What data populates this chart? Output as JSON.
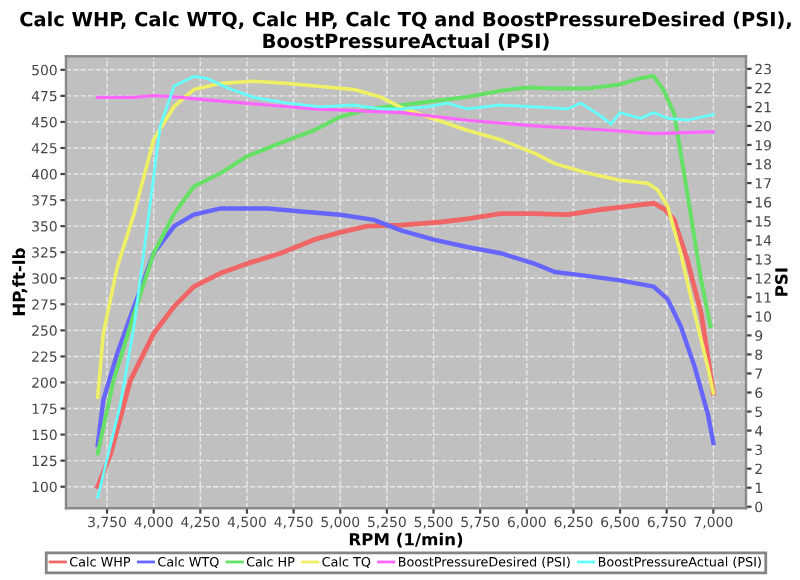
{
  "chart_data": {
    "type": "line",
    "title": "Calc WHP, Calc WTQ, Calc HP, Calc TQ and BoostPressureDesired (PSI),\nBoostPressureActual (PSI)",
    "xlabel": "RPM (1/min)",
    "ylabel": "HP,ft-lb",
    "y2label": "PSI",
    "xlim": [
      3530,
      7175
    ],
    "ylim": [
      79.5,
      513
    ],
    "y2lim": [
      -0.07,
      23.66
    ],
    "xticks": [
      {
        "value": 3750,
        "label": "3,750"
      },
      {
        "value": 4000,
        "label": "4,000"
      },
      {
        "value": 4250,
        "label": "4,250"
      },
      {
        "value": 4500,
        "label": "4,500"
      },
      {
        "value": 4750,
        "label": "4,750"
      },
      {
        "value": 5000,
        "label": "5,000"
      },
      {
        "value": 5250,
        "label": "5,250"
      },
      {
        "value": 5500,
        "label": "5,500"
      },
      {
        "value": 5750,
        "label": "5,750"
      },
      {
        "value": 6000,
        "label": "6,000"
      },
      {
        "value": 6250,
        "label": "6,250"
      },
      {
        "value": 6500,
        "label": "6,500"
      },
      {
        "value": 6750,
        "label": "6,750"
      },
      {
        "value": 7000,
        "label": "7,000"
      }
    ],
    "yticks": [
      100,
      125,
      150,
      175,
      200,
      225,
      250,
      275,
      300,
      325,
      350,
      375,
      400,
      425,
      450,
      475,
      500
    ],
    "y2ticks": [
      0,
      1,
      2,
      3,
      4,
      5,
      6,
      7,
      8,
      9,
      10,
      11,
      12,
      13,
      14,
      15,
      16,
      17,
      18,
      19,
      20,
      21,
      22,
      23
    ],
    "grid": true,
    "legend": "bottom",
    "line_style": "solid",
    "marker": "none",
    "series": [
      {
        "name": "Calc WHP",
        "color": "#f06666",
        "x": [
          3700,
          3770,
          3875,
          4000,
          4110,
          4215,
          4360,
          4500,
          4680,
          4860,
          5000,
          5145,
          5325,
          5540,
          5680,
          5860,
          6040,
          6220,
          6400,
          6540,
          6680,
          6740,
          6790,
          6860,
          6935,
          7000
        ],
        "values": [
          100,
          132,
          202,
          247,
          273,
          292,
          305,
          314,
          324,
          337,
          344,
          350,
          351,
          354,
          357,
          362,
          362,
          361,
          366,
          369,
          372,
          366,
          356,
          318,
          266,
          190
        ]
      },
      {
        "name": "Calc WTQ",
        "color": "#6666ff",
        "x": [
          3700,
          3730,
          3805,
          3895,
          4000,
          4110,
          4215,
          4360,
          4610,
          4790,
          5000,
          5180,
          5325,
          5500,
          5680,
          5860,
          6040,
          6150,
          6290,
          6500,
          6680,
          6755,
          6825,
          6900,
          6970,
          7000
        ],
        "values": [
          140,
          183,
          228,
          273,
          324,
          350,
          361,
          367,
          367,
          364,
          361,
          356,
          346,
          337,
          330,
          324,
          314,
          306,
          303,
          298,
          292,
          280,
          254,
          215,
          170,
          142
        ]
      },
      {
        "name": "Calc HP",
        "color": "#66e066",
        "x": [
          3700,
          3785,
          3895,
          4000,
          4110,
          4215,
          4360,
          4500,
          4680,
          4860,
          5000,
          5180,
          5325,
          5500,
          5680,
          5860,
          6005,
          6150,
          6325,
          6500,
          6610,
          6680,
          6735,
          6790,
          6860,
          6935,
          6985
        ],
        "values": [
          132,
          202,
          266,
          324,
          362,
          388,
          401,
          417,
          430,
          442,
          455,
          463,
          466,
          470,
          474,
          480,
          483,
          482,
          482,
          486,
          492,
          494,
          480,
          458,
          382,
          298,
          254
        ]
      },
      {
        "name": "Calc TQ",
        "color": "#f0f066",
        "x": [
          3700,
          3730,
          3805,
          3895,
          4000,
          4110,
          4215,
          4360,
          4535,
          4715,
          4895,
          5075,
          5215,
          5325,
          5500,
          5680,
          5860,
          6040,
          6150,
          6325,
          6500,
          6650,
          6700,
          6755,
          6825,
          6900,
          6970,
          7000
        ],
        "values": [
          186,
          247,
          311,
          362,
          433,
          465,
          481,
          487,
          489,
          487,
          484,
          481,
          474,
          464,
          453,
          442,
          433,
          420,
          410,
          401,
          394,
          391,
          385,
          369,
          324,
          266,
          215,
          190
        ]
      },
      {
        "name": "BoostPressureDesired (PSI)",
        "color": "#ff66ff",
        "axis": "y2",
        "x": [
          3700,
          3895,
          4000,
          4145,
          4250,
          4360,
          4610,
          4860,
          5075,
          5325,
          5680,
          6040,
          6400,
          6680,
          7000
        ],
        "values": [
          21.5,
          21.5,
          21.6,
          21.5,
          21.4,
          21.3,
          21.1,
          20.9,
          20.8,
          20.7,
          20.3,
          20.0,
          19.8,
          19.6,
          19.7
        ]
      },
      {
        "name": "BoostPressureActual (PSI)",
        "color": "#66ffff",
        "axis": "y2",
        "x": [
          3700,
          3750,
          3820,
          3895,
          3965,
          4035,
          4110,
          4215,
          4285,
          4395,
          4535,
          4715,
          4895,
          5075,
          5215,
          5325,
          5465,
          5575,
          5680,
          5860,
          6040,
          6220,
          6290,
          6400,
          6450,
          6500,
          6610,
          6680,
          6755,
          6860,
          7000
        ],
        "values": [
          0.5,
          2.5,
          5.3,
          9.5,
          14.7,
          20.0,
          22.1,
          22.6,
          22.5,
          22.0,
          21.5,
          21.2,
          21.0,
          21.1,
          20.9,
          20.9,
          21.0,
          21.2,
          20.9,
          21.1,
          21.0,
          20.9,
          21.2,
          20.5,
          20.1,
          20.7,
          20.4,
          20.7,
          20.4,
          20.3,
          20.6
        ]
      }
    ]
  }
}
